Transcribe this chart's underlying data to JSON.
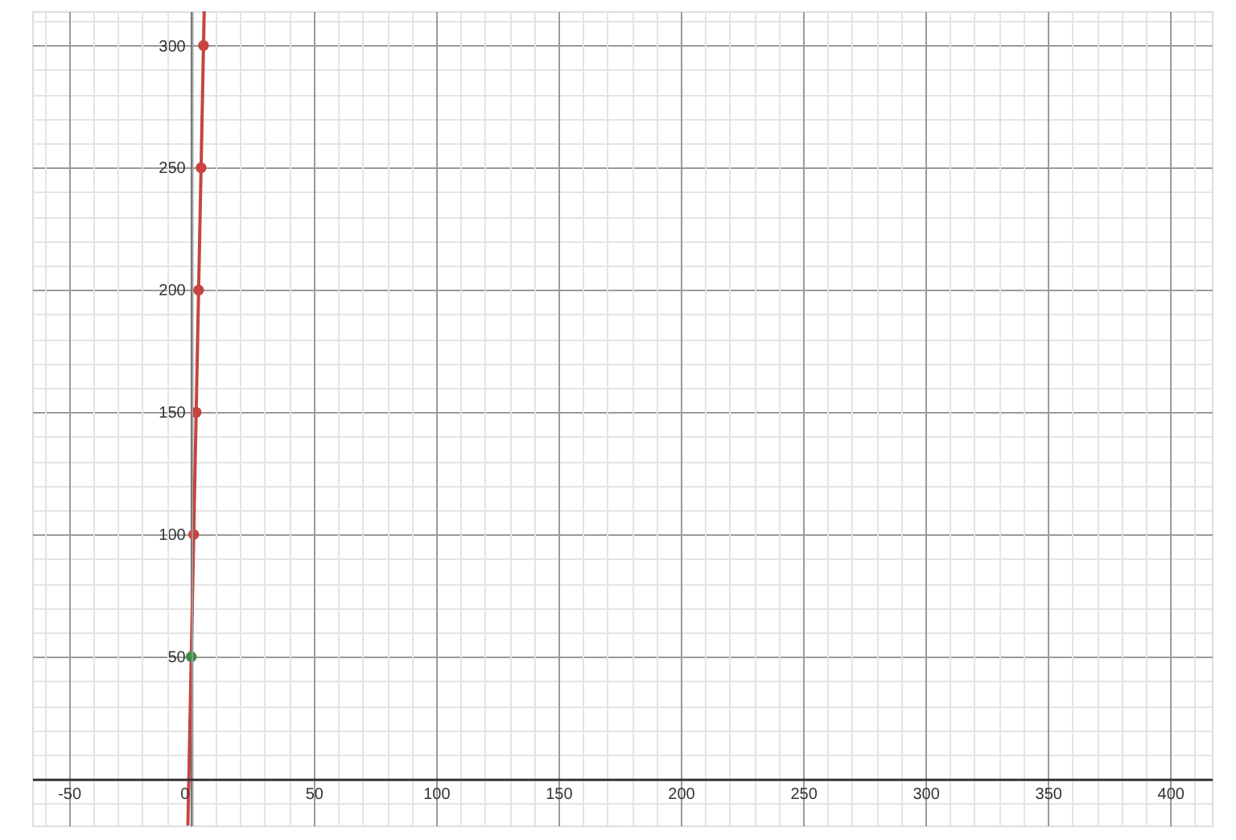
{
  "chart_data": {
    "type": "scatter",
    "xlim": [
      -65,
      417
    ],
    "ylim": [
      -19,
      314
    ],
    "grid": true,
    "marker": "circle",
    "xticks": [
      {
        "value": -60,
        "label": null
      },
      -50,
      {
        "value": -40,
        "label": null
      },
      {
        "value": -30,
        "label": null
      },
      {
        "value": -20,
        "label": null
      },
      {
        "value": -10,
        "label": null
      },
      0,
      {
        "value": 10,
        "label": null
      },
      {
        "value": 20,
        "label": null
      },
      {
        "value": 30,
        "label": null
      },
      {
        "value": 40,
        "label": null
      },
      50,
      {
        "value": 60,
        "label": null
      },
      {
        "value": 70,
        "label": null
      },
      {
        "value": 80,
        "label": null
      },
      {
        "value": 90,
        "label": null
      },
      100,
      {
        "value": 110,
        "label": null
      },
      {
        "value": 120,
        "label": null
      },
      {
        "value": 130,
        "label": null
      },
      {
        "value": 140,
        "label": null
      },
      150,
      {
        "value": 160,
        "label": null
      },
      {
        "value": 170,
        "label": null
      },
      {
        "value": 180,
        "label": null
      },
      {
        "value": 190,
        "label": null
      },
      200,
      {
        "value": 210,
        "label": null
      },
      {
        "value": 220,
        "label": null
      },
      {
        "value": 230,
        "label": null
      },
      {
        "value": 240,
        "label": null
      },
      250,
      {
        "value": 260,
        "label": null
      },
      {
        "value": 270,
        "label": null
      },
      {
        "value": 280,
        "label": null
      },
      {
        "value": 290,
        "label": null
      },
      300,
      {
        "value": 310,
        "label": null
      },
      {
        "value": 320,
        "label": null
      },
      {
        "value": 330,
        "label": null
      },
      {
        "value": 340,
        "label": null
      },
      350,
      {
        "value": 360,
        "label": null
      },
      {
        "value": 370,
        "label": null
      },
      {
        "value": 380,
        "label": null
      },
      {
        "value": 390,
        "label": null
      },
      400,
      {
        "value": 410,
        "label": null
      }
    ],
    "yticks": [
      {
        "value": -10,
        "label": null
      },
      {
        "value": 0,
        "label": null
      },
      {
        "value": 10,
        "label": null
      },
      {
        "value": 20,
        "label": null
      },
      {
        "value": 30,
        "label": null
      },
      {
        "value": 40,
        "label": null
      },
      50,
      {
        "value": 60,
        "label": null
      },
      {
        "value": 70,
        "label": null
      },
      {
        "value": 80,
        "label": null
      },
      {
        "value": 90,
        "label": null
      },
      100,
      {
        "value": 110,
        "label": null
      },
      {
        "value": 120,
        "label": null
      },
      {
        "value": 130,
        "label": null
      },
      {
        "value": 140,
        "label": null
      },
      150,
      {
        "value": 160,
        "label": null
      },
      {
        "value": 170,
        "label": null
      },
      {
        "value": 180,
        "label": null
      },
      {
        "value": 190,
        "label": null
      },
      200,
      {
        "value": 210,
        "label": null
      },
      {
        "value": 220,
        "label": null
      },
      {
        "value": 230,
        "label": null
      },
      {
        "value": 240,
        "label": null
      },
      250,
      {
        "value": 260,
        "label": null
      },
      {
        "value": 270,
        "label": null
      },
      {
        "value": 280,
        "label": null
      },
      {
        "value": 290,
        "label": null
      },
      300,
      {
        "value": 310,
        "label": null
      }
    ],
    "series": [
      {
        "type": "line",
        "color": "#c74440",
        "x": [
          -1.38,
          5.28
        ],
        "values": [
          -19,
          314
        ],
        "marker": "none",
        "line_style": "solid"
      },
      {
        "color": "#c74440",
        "x": [
          1,
          2,
          3,
          4,
          5
        ],
        "values": [
          100,
          150,
          200,
          250,
          300
        ]
      },
      {
        "color": "#388c46",
        "x": [
          0
        ],
        "values": [
          50
        ]
      }
    ]
  }
}
